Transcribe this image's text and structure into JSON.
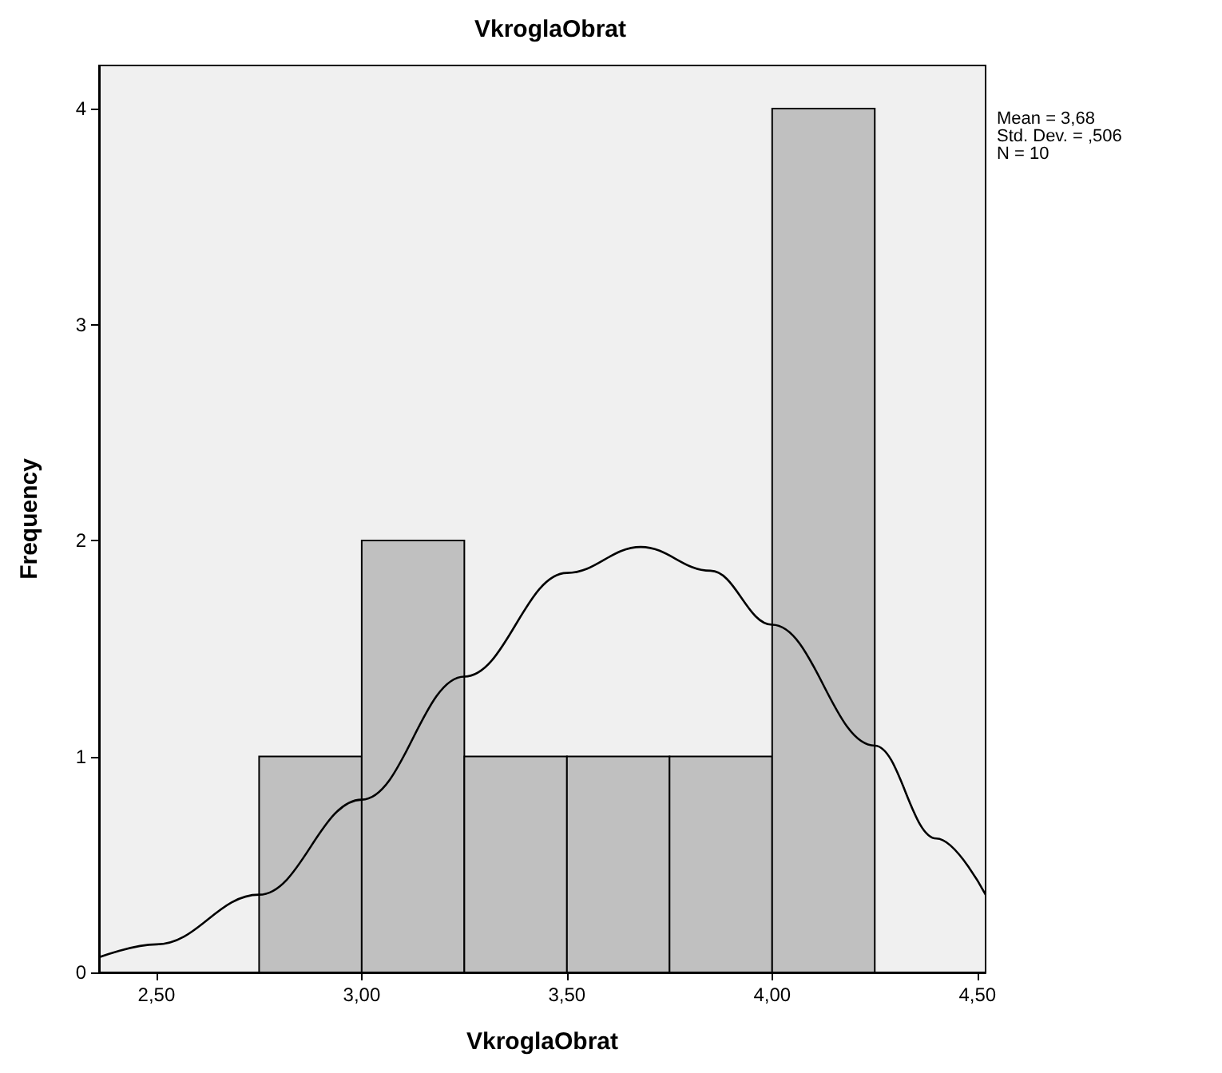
{
  "chart_data": {
    "type": "histogram",
    "title": "VkroglaObrat",
    "xlabel": "VkroglaObrat",
    "ylabel": "Frequency",
    "bins": [
      2.75,
      3.0,
      3.25,
      3.5,
      3.75,
      4.0,
      4.25
    ],
    "values": [
      1,
      2,
      1,
      1,
      1,
      4
    ],
    "color": "#c0c0c0",
    "series": [
      {
        "type": "line",
        "color": "#000000",
        "x": [
          2.36,
          2.5,
          2.75,
          3.0,
          3.25,
          3.5,
          3.68,
          3.85,
          4.0,
          4.25,
          4.4,
          4.52
        ],
        "values": [
          0.07,
          0.13,
          0.36,
          0.8,
          1.37,
          1.85,
          1.97,
          1.86,
          1.61,
          1.05,
          0.62,
          0.36
        ]
      }
    ],
    "xlim": [
      2.36,
      4.52
    ],
    "xticks": [
      {
        "value": 2.5,
        "label": "2,50"
      },
      {
        "value": 3.0,
        "label": "3,00"
      },
      {
        "value": 3.5,
        "label": "3,50"
      },
      {
        "value": 4.0,
        "label": "4,00"
      },
      {
        "value": 4.5,
        "label": "4,50"
      }
    ],
    "ylim": [
      0,
      4.2
    ],
    "yticks": [
      0,
      1,
      2,
      3,
      4
    ],
    "marker": "none",
    "line_style": "solid",
    "annotations": [
      "Mean = 3,68",
      "Std. Dev. = ,506",
      "N = 10"
    ]
  }
}
